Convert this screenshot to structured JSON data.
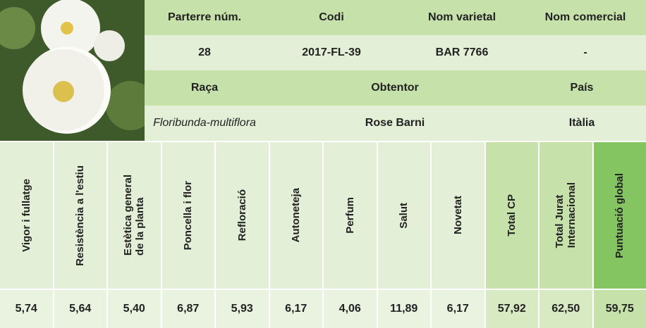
{
  "header": {
    "row1": [
      "Parterre núm.",
      "Codi",
      "Nom varietal",
      "Nom comercial"
    ],
    "row2": [
      "28",
      "2017-FL-39",
      "BAR 7766",
      "-"
    ],
    "row3": [
      "Raça",
      "Obtentor",
      "País"
    ],
    "row4": [
      "Floribunda-multiflora",
      "Rose Barni",
      "Itàlia"
    ]
  },
  "scores": {
    "headers": [
      "Vigor i fullatge",
      "Resistència a l'estiu",
      "Estètica general\nde la planta",
      "Poncella i flor",
      "Refloració",
      "Autoneteja",
      "Perfum",
      "Salut",
      "Novetat",
      "Total CP",
      "Total Jurat\nInternacional",
      "Puntuació global"
    ],
    "values": [
      "5,74",
      "5,64",
      "5,40",
      "6,87",
      "5,93",
      "6,17",
      "4,06",
      "11,89",
      "6,17",
      "57,92",
      "62,50",
      "59,75"
    ]
  }
}
